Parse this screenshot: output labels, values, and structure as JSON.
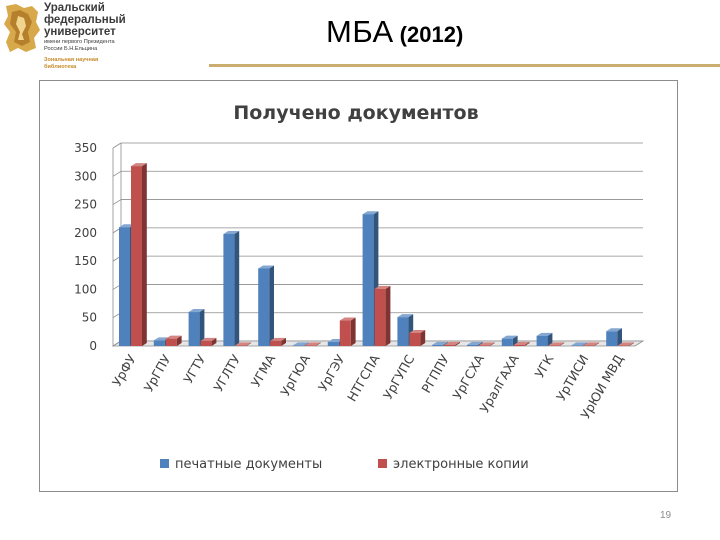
{
  "header": {
    "logo": {
      "line1": "Уральский",
      "line2": "федеральный",
      "line3": "университет",
      "line4": "имени первого Президента",
      "line5": "России Б.Н.Ельцина",
      "line6": "Зональная научная",
      "line7": "библиотека"
    },
    "title": "МБА",
    "year": "(2012)"
  },
  "footer": {
    "page_number": "19"
  },
  "colors": {
    "series_print": "#4f81bd",
    "series_electronic": "#c0504d",
    "header_rule": "#c9ae6f",
    "grid": "#8c8c8c"
  },
  "chart_data": {
    "type": "bar",
    "title": "Получено документов",
    "xlabel": "",
    "ylabel": "",
    "ylim": [
      0,
      350
    ],
    "yticks": [
      0,
      50,
      100,
      150,
      200,
      250,
      300,
      350
    ],
    "grid": true,
    "legend_position": "bottom",
    "style": "3d-bar",
    "categories": [
      "УрФУ",
      "УрГПУ",
      "УГТУ",
      "УГЛТУ",
      "УГМА",
      "УрГЮА",
      "УрГЭУ",
      "НТГСПА",
      "УрГУПС",
      "РГППУ",
      "УрГСХА",
      "УралГАХА",
      "УГК",
      "УрТИСИ",
      "УрЮИ МВД"
    ],
    "series": [
      {
        "name": "печатные документы",
        "values": [
          210,
          10,
          60,
          198,
          137,
          1,
          7,
          233,
          51,
          2,
          2,
          13,
          18,
          1,
          26
        ]
      },
      {
        "name": "электронные копии",
        "values": [
          318,
          13,
          9,
          1,
          9,
          1,
          45,
          101,
          23,
          2,
          1,
          2,
          1,
          1,
          1
        ]
      }
    ]
  }
}
